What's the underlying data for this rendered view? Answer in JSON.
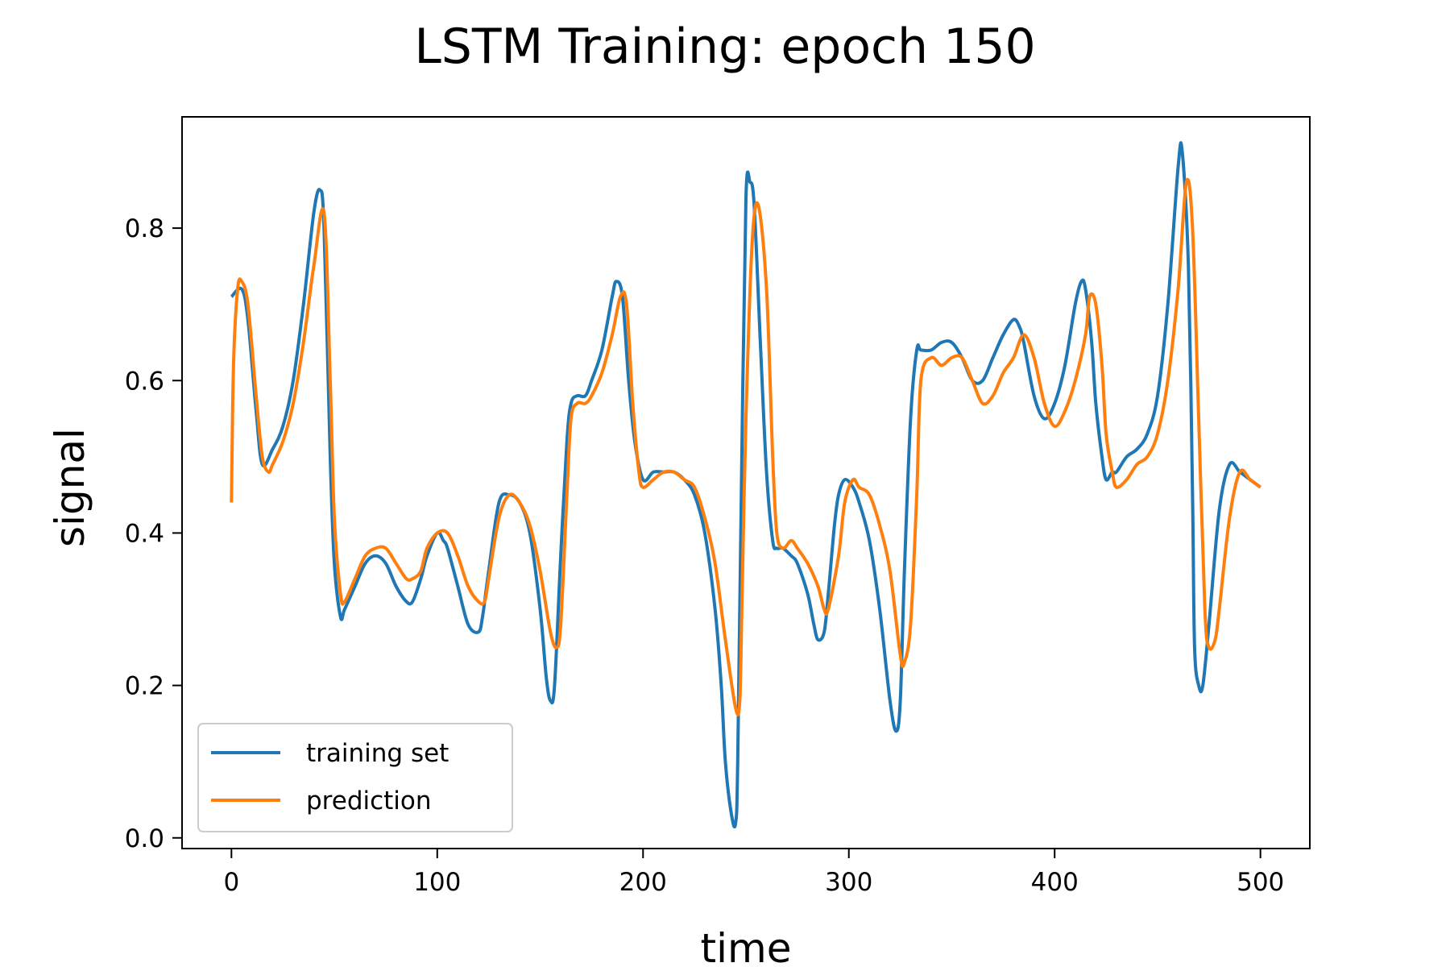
{
  "chart_data": {
    "type": "line",
    "title": "LSTM Training: epoch 150",
    "xlabel": "time",
    "ylabel": "signal",
    "xlim": [
      -24,
      524
    ],
    "ylim": [
      -0.014,
      0.946
    ],
    "xticks": [
      0,
      100,
      200,
      300,
      400,
      500
    ],
    "xtick_labels": [
      "0",
      "100",
      "200",
      "300",
      "400",
      "500"
    ],
    "yticks": [
      0.0,
      0.2,
      0.4,
      0.6,
      0.8
    ],
    "ytick_labels": [
      "0.0",
      "0.2",
      "0.4",
      "0.6",
      "0.8"
    ],
    "grid": false,
    "legend_position": "lower-left",
    "series": [
      {
        "name": "training set",
        "color": "#1f77b4",
        "x": [
          0,
          5,
          8,
          12,
          15,
          20,
          25,
          30,
          35,
          40,
          43,
          45,
          48,
          50,
          53,
          55,
          60,
          65,
          70,
          75,
          80,
          85,
          88,
          92,
          95,
          100,
          103,
          105,
          110,
          115,
          120,
          122,
          125,
          130,
          135,
          140,
          145,
          150,
          153,
          155,
          157,
          160,
          163,
          165,
          168,
          172,
          175,
          180,
          185,
          187,
          190,
          193,
          196,
          200,
          205,
          210,
          215,
          220,
          225,
          230,
          235,
          238,
          240,
          243,
          245,
          246,
          248,
          250,
          252,
          254,
          257,
          260,
          263,
          265,
          268,
          272,
          275,
          280,
          283,
          285,
          288,
          290,
          293,
          295,
          298,
          302,
          305,
          310,
          315,
          320,
          323,
          325,
          327,
          330,
          333,
          335,
          340,
          345,
          350,
          355,
          360,
          365,
          370,
          375,
          380,
          383,
          385,
          390,
          395,
          400,
          405,
          410,
          413,
          415,
          418,
          420,
          423,
          425,
          428,
          430,
          435,
          440,
          445,
          450,
          455,
          460,
          462,
          465,
          467,
          468,
          470,
          472,
          475,
          480,
          485,
          490,
          495,
          500
        ],
        "y": [
          0.71,
          0.72,
          0.68,
          0.56,
          0.49,
          0.51,
          0.54,
          0.6,
          0.7,
          0.82,
          0.85,
          0.8,
          0.5,
          0.36,
          0.29,
          0.3,
          0.33,
          0.36,
          0.37,
          0.36,
          0.33,
          0.31,
          0.31,
          0.34,
          0.37,
          0.4,
          0.39,
          0.38,
          0.33,
          0.28,
          0.27,
          0.29,
          0.35,
          0.44,
          0.45,
          0.44,
          0.4,
          0.3,
          0.21,
          0.18,
          0.2,
          0.37,
          0.52,
          0.57,
          0.58,
          0.58,
          0.6,
          0.64,
          0.71,
          0.73,
          0.71,
          0.6,
          0.52,
          0.47,
          0.48,
          0.48,
          0.48,
          0.47,
          0.45,
          0.4,
          0.3,
          0.2,
          0.1,
          0.03,
          0.02,
          0.1,
          0.5,
          0.84,
          0.86,
          0.83,
          0.65,
          0.48,
          0.39,
          0.38,
          0.38,
          0.37,
          0.36,
          0.32,
          0.28,
          0.26,
          0.27,
          0.32,
          0.41,
          0.45,
          0.47,
          0.46,
          0.44,
          0.39,
          0.3,
          0.18,
          0.14,
          0.18,
          0.35,
          0.55,
          0.64,
          0.64,
          0.64,
          0.65,
          0.65,
          0.63,
          0.6,
          0.6,
          0.63,
          0.66,
          0.68,
          0.67,
          0.65,
          0.58,
          0.55,
          0.57,
          0.62,
          0.7,
          0.73,
          0.72,
          0.65,
          0.57,
          0.5,
          0.47,
          0.48,
          0.48,
          0.5,
          0.51,
          0.53,
          0.58,
          0.7,
          0.88,
          0.9,
          0.75,
          0.45,
          0.25,
          0.2,
          0.2,
          0.28,
          0.43,
          0.49,
          0.48,
          0.47,
          0.46
        ]
      },
      {
        "name": "prediction",
        "color": "#ff7f0e",
        "x": [
          0,
          1,
          3,
          5,
          8,
          12,
          15,
          18,
          20,
          25,
          30,
          35,
          40,
          45,
          48,
          50,
          53,
          55,
          60,
          65,
          70,
          75,
          80,
          85,
          88,
          92,
          95,
          100,
          105,
          110,
          115,
          120,
          123,
          125,
          130,
          135,
          140,
          145,
          150,
          155,
          158,
          160,
          163,
          165,
          168,
          172,
          175,
          180,
          185,
          189,
          192,
          195,
          198,
          200,
          205,
          210,
          215,
          220,
          225,
          230,
          235,
          240,
          245,
          247,
          248,
          250,
          253,
          256,
          260,
          263,
          265,
          268,
          272,
          275,
          280,
          285,
          288,
          290,
          295,
          298,
          302,
          305,
          310,
          315,
          320,
          325,
          327,
          330,
          333,
          335,
          340,
          345,
          350,
          355,
          360,
          365,
          370,
          375,
          380,
          385,
          390,
          395,
          400,
          405,
          410,
          415,
          417,
          420,
          423,
          425,
          428,
          430,
          435,
          440,
          445,
          450,
          455,
          460,
          464,
          467,
          470,
          473,
          475,
          478,
          480,
          485,
          490,
          495,
          500
        ],
        "y": [
          0.44,
          0.62,
          0.72,
          0.73,
          0.7,
          0.58,
          0.5,
          0.48,
          0.49,
          0.52,
          0.57,
          0.65,
          0.75,
          0.82,
          0.6,
          0.42,
          0.32,
          0.31,
          0.34,
          0.37,
          0.38,
          0.38,
          0.36,
          0.34,
          0.34,
          0.35,
          0.38,
          0.4,
          0.4,
          0.37,
          0.33,
          0.31,
          0.31,
          0.34,
          0.42,
          0.45,
          0.44,
          0.41,
          0.35,
          0.27,
          0.25,
          0.28,
          0.45,
          0.55,
          0.57,
          0.57,
          0.58,
          0.61,
          0.66,
          0.71,
          0.7,
          0.57,
          0.48,
          0.46,
          0.47,
          0.48,
          0.48,
          0.47,
          0.46,
          0.42,
          0.36,
          0.26,
          0.17,
          0.18,
          0.3,
          0.55,
          0.78,
          0.83,
          0.72,
          0.5,
          0.4,
          0.38,
          0.39,
          0.38,
          0.36,
          0.33,
          0.3,
          0.3,
          0.37,
          0.44,
          0.47,
          0.46,
          0.45,
          0.41,
          0.35,
          0.24,
          0.23,
          0.28,
          0.45,
          0.6,
          0.63,
          0.62,
          0.63,
          0.63,
          0.6,
          0.57,
          0.58,
          0.61,
          0.63,
          0.66,
          0.63,
          0.57,
          0.54,
          0.56,
          0.6,
          0.66,
          0.71,
          0.7,
          0.62,
          0.53,
          0.48,
          0.46,
          0.47,
          0.49,
          0.5,
          0.53,
          0.6,
          0.72,
          0.86,
          0.8,
          0.55,
          0.3,
          0.25,
          0.26,
          0.3,
          0.42,
          0.48,
          0.47,
          0.46
        ]
      }
    ]
  }
}
